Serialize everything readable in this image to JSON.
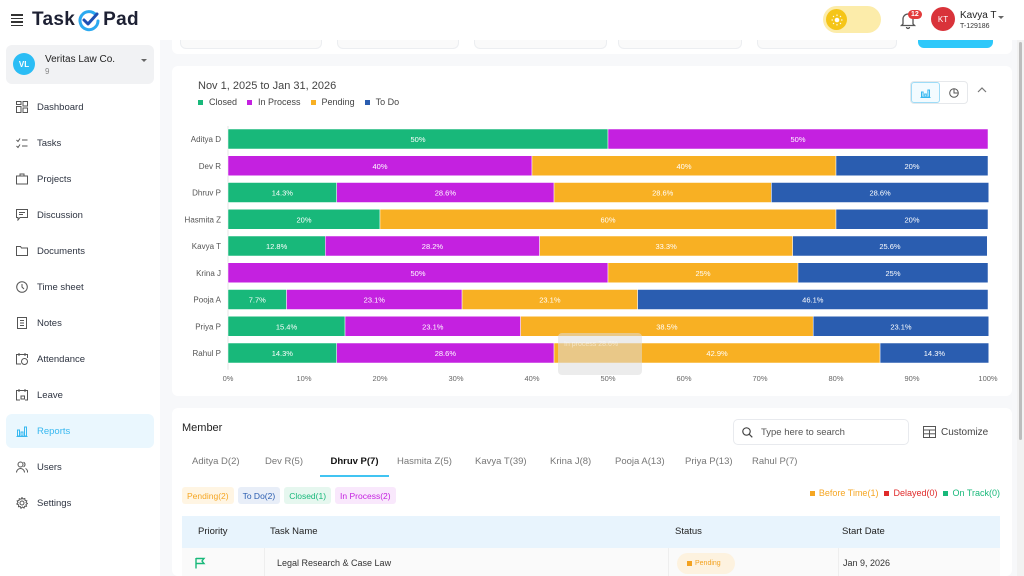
{
  "header": {
    "app_name_left": "Task",
    "app_name_right": "Pad",
    "notification_count": "12",
    "user": {
      "initials": "KT",
      "name": "Kavya T",
      "id": "T-129186"
    }
  },
  "sidebar": {
    "org": {
      "initials": "VL",
      "name": "Veritas Law Co.",
      "count": "9"
    },
    "items": [
      {
        "label": "Dashboard",
        "icon": "dashboard-icon",
        "active": false
      },
      {
        "label": "Tasks",
        "icon": "tasks-icon",
        "active": false
      },
      {
        "label": "Projects",
        "icon": "briefcase-icon",
        "active": false
      },
      {
        "label": "Discussion",
        "icon": "chat-icon",
        "active": false
      },
      {
        "label": "Documents",
        "icon": "folder-icon",
        "active": false
      },
      {
        "label": "Time sheet",
        "icon": "clock-icon",
        "active": false
      },
      {
        "label": "Notes",
        "icon": "notes-icon",
        "active": false
      },
      {
        "label": "Attendance",
        "icon": "calendar-clock-icon",
        "active": false
      },
      {
        "label": "Leave",
        "icon": "calendar-lock-icon",
        "active": false
      },
      {
        "label": "Reports",
        "icon": "bar-chart-icon",
        "active": true
      },
      {
        "label": "Users",
        "icon": "users-icon",
        "active": false
      },
      {
        "label": "Settings",
        "icon": "gear-icon",
        "active": false
      }
    ]
  },
  "report": {
    "date_range": "Nov 1, 2025 to Jan 31, 2026",
    "tooltip": {
      "label": "In process",
      "value": "28.6%"
    }
  },
  "chart_data": {
    "type": "bar",
    "orientation": "horizontal",
    "stacked": true,
    "title": "Nov 1, 2025 to Jan 31, 2026",
    "categories": [
      "Aditya D",
      "Dev R",
      "Dhruv P",
      "Hasmita Z",
      "Kavya T",
      "Krina J",
      "Pooja A",
      "Priya P",
      "Rahul P"
    ],
    "series": [
      {
        "name": "Closed",
        "color": "#18b87a",
        "values": [
          50,
          0,
          14.3,
          20,
          12.8,
          0,
          7.7,
          15.4,
          14.3
        ]
      },
      {
        "name": "In Process",
        "color": "#c421e0",
        "values": [
          50,
          40,
          28.6,
          0,
          28.2,
          50,
          23.1,
          23.1,
          28.6
        ]
      },
      {
        "name": "Pending",
        "color": "#f8b023",
        "values": [
          0,
          40,
          28.6,
          60,
          33.3,
          25,
          23.1,
          38.5,
          42.9
        ]
      },
      {
        "name": "To Do",
        "color": "#2a5db0",
        "values": [
          0,
          20,
          28.6,
          20,
          25.6,
          25,
          46.1,
          23.1,
          14.3
        ]
      }
    ],
    "xlim": [
      0,
      100
    ],
    "xticks": [
      "0%",
      "10%",
      "20%",
      "30%",
      "40%",
      "50%",
      "60%",
      "70%",
      "80%",
      "90%",
      "100%"
    ],
    "legend": "top-left",
    "xlabel": "",
    "ylabel": ""
  },
  "member": {
    "title": "Member",
    "search_placeholder": "Type here to search",
    "customize_label": "Customize",
    "tabs": [
      {
        "label": "Aditya D(2)",
        "active": false
      },
      {
        "label": "Dev R(5)",
        "active": false
      },
      {
        "label": "Dhruv P(7)",
        "active": true
      },
      {
        "label": "Hasmita Z(5)",
        "active": false
      },
      {
        "label": "Kavya T(39)",
        "active": false
      },
      {
        "label": "Krina J(8)",
        "active": false
      },
      {
        "label": "Pooja A(13)",
        "active": false
      },
      {
        "label": "Priya P(13)",
        "active": false
      },
      {
        "label": "Rahul P(7)",
        "active": false
      }
    ],
    "status_chips": [
      {
        "label": "Pending(2)",
        "color": "#f5a623",
        "bg": "#fff5e3"
      },
      {
        "label": "To Do(2)",
        "color": "#2a5db0",
        "bg": "#e8eef8"
      },
      {
        "label": "Closed(1)",
        "color": "#18b87a",
        "bg": "#e6f7ef"
      },
      {
        "label": "In Process(2)",
        "color": "#c421e0",
        "bg": "#f9e8fc"
      }
    ],
    "timing": [
      {
        "label": "Before Time(1)",
        "color": "#f5a623"
      },
      {
        "label": "Delayed(0)",
        "color": "#e02a2a"
      },
      {
        "label": "On Track(0)",
        "color": "#18b87a"
      }
    ],
    "table": {
      "columns": [
        "Priority",
        "Task Name",
        "Status",
        "Start Date"
      ],
      "rows": [
        {
          "priority": "flag-green",
          "task_name": "Legal Research & Case Law",
          "status": "Pending",
          "start_date": "Jan 9, 2026"
        }
      ]
    }
  }
}
